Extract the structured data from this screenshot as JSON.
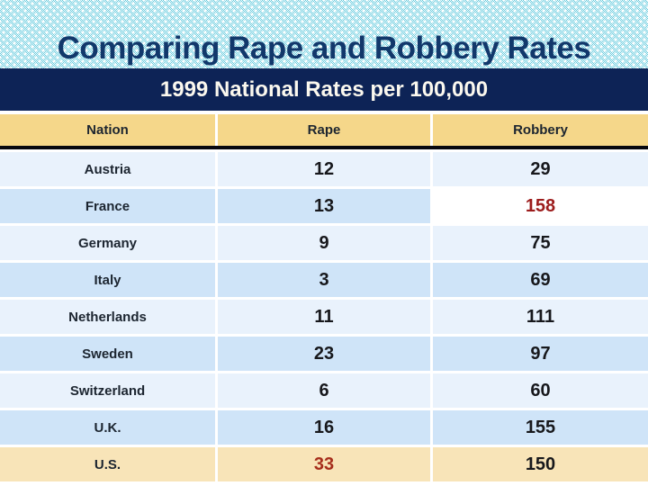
{
  "slide": {
    "title": "Comparing Rape and Robbery Rates",
    "subtitle": "1999 National Rates per 100,000"
  },
  "table": {
    "headers": {
      "nation": "Nation",
      "rape": "Rape",
      "robbery": "Robbery"
    },
    "rows": [
      {
        "nation": "Austria",
        "rape": "12",
        "robbery": "29"
      },
      {
        "nation": "France",
        "rape": "13",
        "robbery": "158"
      },
      {
        "nation": "Germany",
        "rape": "9",
        "robbery": "75"
      },
      {
        "nation": "Italy",
        "rape": "3",
        "robbery": "69"
      },
      {
        "nation": "Netherlands",
        "rape": "11",
        "robbery": "111"
      },
      {
        "nation": "Sweden",
        "rape": "23",
        "robbery": "97"
      },
      {
        "nation": "Switzerland",
        "rape": "6",
        "robbery": "60"
      },
      {
        "nation": "U.K.",
        "rape": "16",
        "robbery": "155"
      },
      {
        "nation": "U.S.",
        "rape": "33",
        "robbery": "150"
      }
    ]
  },
  "colors": {
    "title_text": "#12386b",
    "title_pattern_teal": "#5ec8dc",
    "subtitle_bar": "#0d2356",
    "subtitle_text": "#fbf8ee",
    "header_bg": "#f5d78a",
    "header_divider": "#06070f",
    "row_light": "#e9f2fc",
    "row_medium": "#cfe4f8",
    "us_row_bg": "#f8e4b8",
    "france_robbery_cell_bg": "#ffffff",
    "red_value": "#9c1c1c"
  },
  "chart_data": {
    "type": "table",
    "title": "Comparing Rape and Robbery Rates",
    "subtitle": "1999 National Rates per 100,000",
    "columns": [
      "Nation",
      "Rape",
      "Robbery"
    ],
    "rows": [
      [
        "Austria",
        12,
        29
      ],
      [
        "France",
        13,
        158
      ],
      [
        "Germany",
        9,
        75
      ],
      [
        "Italy",
        3,
        69
      ],
      [
        "Netherlands",
        11,
        111
      ],
      [
        "Sweden",
        23,
        97
      ],
      [
        "Switzerland",
        6,
        60
      ],
      [
        "U.K.",
        16,
        155
      ],
      [
        "U.S.",
        33,
        150
      ]
    ],
    "notes": "Rates per 100,000 population, 1999. France robbery value 158 emphasized in dark red on a white cell; U.S. row highlighted tan with rape value 33 in dark red."
  }
}
